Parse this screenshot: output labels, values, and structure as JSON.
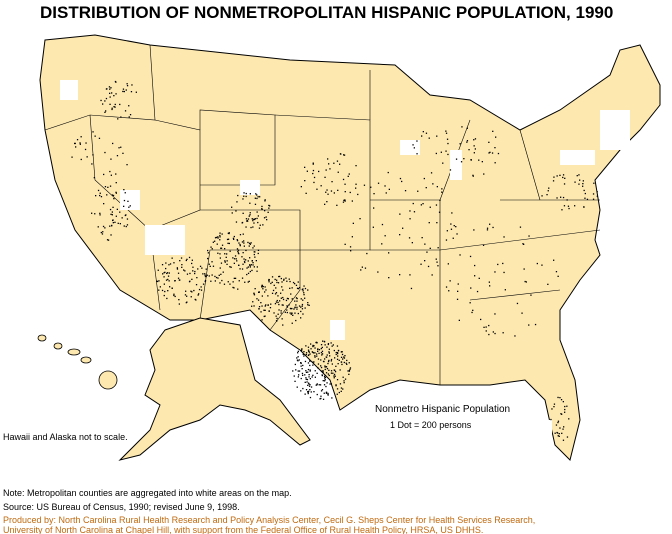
{
  "title": "DISTRIBUTION OF NONMETROPOLITAN HISPANIC POPULATION, 1990",
  "legend": {
    "title": "Nonmetro Hispanic Population",
    "scale": "1 Dot = 200 persons"
  },
  "scale_note": "Hawaii and Alaska not to scale.",
  "notes": {
    "metro": "Note: Metropolitan counties are aggregated into white areas on the map.",
    "source": "Source: US Bureau of Census, 1990; revised June 9, 1998.",
    "produced": [
      "Produced by: North Carolina Rural Health Research and Policy Analysis Center, Cecil G. Sheps Center for Health Services Research,",
      "University of North Carolina at Chapel Hill, with support from the Federal Office of Rural Health Policy, HRSA, US DHHS."
    ]
  }
}
